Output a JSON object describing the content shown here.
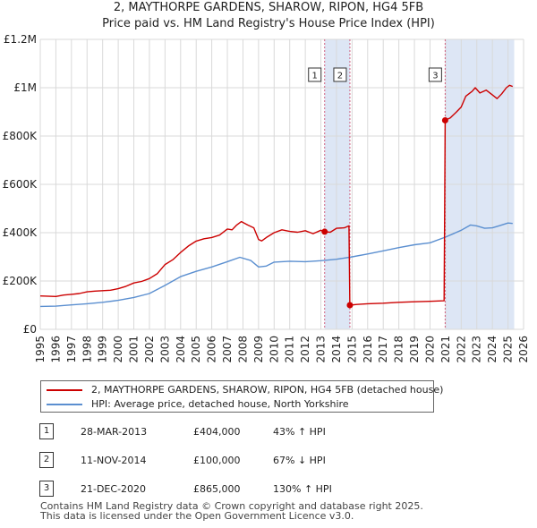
{
  "title_line1": "2, MAYTHORPE GARDENS, SHAROW, RIPON, HG4 5FB",
  "title_line2": "Price paid vs. HM Land Registry's House Price Index (HPI)",
  "colors": {
    "property": "#cc0000",
    "hpi": "#5b8fd0",
    "highlight": "#dde6f5",
    "grid": "#d9d9d9",
    "vline": "#d06080"
  },
  "chart_data": {
    "type": "line",
    "title": "Price paid vs. HM Land Registry's House Price Index (HPI)",
    "xlim": [
      1995,
      2026
    ],
    "ylim": [
      0,
      1200000
    ],
    "x_ticks": [
      1995,
      1996,
      1997,
      1998,
      1999,
      2000,
      2001,
      2002,
      2003,
      2004,
      2005,
      2006,
      2007,
      2008,
      2009,
      2010,
      2011,
      2012,
      2013,
      2014,
      2015,
      2016,
      2017,
      2018,
      2019,
      2020,
      2021,
      2022,
      2023,
      2024,
      2025,
      2026
    ],
    "y_ticks": [
      {
        "value": 0,
        "label": "£0"
      },
      {
        "value": 200000,
        "label": "£200K"
      },
      {
        "value": 400000,
        "label": "£400K"
      },
      {
        "value": 600000,
        "label": "£600K"
      },
      {
        "value": 800000,
        "label": "£800K"
      },
      {
        "value": 1000000,
        "label": "£1M"
      },
      {
        "value": 1200000,
        "label": "£1.2M"
      }
    ],
    "highlight_ranges": [
      [
        2013.24,
        2014.86
      ],
      [
        2020.97,
        2025.4
      ]
    ],
    "series": [
      {
        "name": "2, MAYTHORPE GARDENS, SHAROW, RIPON, HG4 5FB (detached house)",
        "color": "#cc0000",
        "points": [
          [
            1995,
            138000
          ],
          [
            1996,
            136000
          ],
          [
            1996.5,
            142000
          ],
          [
            1997,
            145000
          ],
          [
            1997.5,
            148000
          ],
          [
            1998,
            155000
          ],
          [
            1998.5,
            158000
          ],
          [
            1999,
            160000
          ],
          [
            1999.5,
            162000
          ],
          [
            2000,
            168000
          ],
          [
            2000.5,
            178000
          ],
          [
            2001,
            192000
          ],
          [
            2001.5,
            198000
          ],
          [
            2002,
            210000
          ],
          [
            2002.5,
            230000
          ],
          [
            2003,
            268000
          ],
          [
            2003.5,
            288000
          ],
          [
            2004,
            318000
          ],
          [
            2004.5,
            345000
          ],
          [
            2005,
            365000
          ],
          [
            2005.5,
            375000
          ],
          [
            2006,
            380000
          ],
          [
            2006.5,
            390000
          ],
          [
            2007,
            415000
          ],
          [
            2007.3,
            412000
          ],
          [
            2007.6,
            432000
          ],
          [
            2007.9,
            446000
          ],
          [
            2008.3,
            432000
          ],
          [
            2008.7,
            420000
          ],
          [
            2009,
            372000
          ],
          [
            2009.2,
            366000
          ],
          [
            2009.5,
            380000
          ],
          [
            2010,
            400000
          ],
          [
            2010.5,
            412000
          ],
          [
            2011,
            405000
          ],
          [
            2011.5,
            402000
          ],
          [
            2012,
            408000
          ],
          [
            2012.5,
            396000
          ],
          [
            2013,
            410000
          ],
          [
            2013.24,
            404000
          ],
          [
            2013.6,
            402000
          ],
          [
            2014,
            418000
          ],
          [
            2014.5,
            420000
          ],
          [
            2014.8,
            428000
          ],
          [
            2014.86,
            100000
          ],
          [
            2015.3,
            103000
          ],
          [
            2016,
            106000
          ],
          [
            2017,
            108000
          ],
          [
            2018,
            112000
          ],
          [
            2019,
            114000
          ],
          [
            2020,
            116000
          ],
          [
            2020.9,
            118000
          ],
          [
            2020.97,
            865000
          ],
          [
            2021.3,
            875000
          ],
          [
            2021.7,
            900000
          ],
          [
            2022,
            920000
          ],
          [
            2022.3,
            965000
          ],
          [
            2022.7,
            985000
          ],
          [
            2022.9,
            1000000
          ],
          [
            2023.2,
            978000
          ],
          [
            2023.6,
            990000
          ],
          [
            2024,
            970000
          ],
          [
            2024.3,
            955000
          ],
          [
            2024.6,
            975000
          ],
          [
            2024.9,
            1000000
          ],
          [
            2025.1,
            1010000
          ],
          [
            2025.3,
            1005000
          ]
        ]
      },
      {
        "name": "HPI: Average price, detached house, North Yorkshire",
        "color": "#5b8fd0",
        "points": [
          [
            1995,
            95000
          ],
          [
            1996,
            96000
          ],
          [
            1997,
            101000
          ],
          [
            1998,
            106000
          ],
          [
            1999,
            112000
          ],
          [
            2000,
            120000
          ],
          [
            2001,
            132000
          ],
          [
            2002,
            148000
          ],
          [
            2003,
            182000
          ],
          [
            2004,
            218000
          ],
          [
            2005,
            240000
          ],
          [
            2006,
            258000
          ],
          [
            2007,
            280000
          ],
          [
            2007.8,
            298000
          ],
          [
            2008.5,
            285000
          ],
          [
            2009,
            258000
          ],
          [
            2009.5,
            262000
          ],
          [
            2010,
            278000
          ],
          [
            2011,
            282000
          ],
          [
            2012,
            280000
          ],
          [
            2013,
            284000
          ],
          [
            2014,
            290000
          ],
          [
            2015,
            300000
          ],
          [
            2016,
            312000
          ],
          [
            2017,
            325000
          ],
          [
            2018,
            338000
          ],
          [
            2019,
            350000
          ],
          [
            2020,
            358000
          ],
          [
            2021,
            382000
          ],
          [
            2022,
            410000
          ],
          [
            2022.6,
            432000
          ],
          [
            2023,
            428000
          ],
          [
            2023.5,
            418000
          ],
          [
            2024,
            420000
          ],
          [
            2024.5,
            430000
          ],
          [
            2025,
            440000
          ],
          [
            2025.3,
            438000
          ]
        ]
      }
    ],
    "sales": [
      {
        "n": "1",
        "x": 2013.24,
        "y": 404000
      },
      {
        "n": "2",
        "x": 2014.86,
        "y": 100000
      },
      {
        "n": "3",
        "x": 2020.97,
        "y": 865000
      }
    ]
  },
  "legend": {
    "property_label": "2, MAYTHORPE GARDENS, SHAROW, RIPON, HG4 5FB (detached house)",
    "hpi_label": "HPI: Average price, detached house, North Yorkshire"
  },
  "sales_table": [
    {
      "n": "1",
      "date": "28-MAR-2013",
      "price": "£404,000",
      "hpi": "43% ↑ HPI"
    },
    {
      "n": "2",
      "date": "11-NOV-2014",
      "price": "£100,000",
      "hpi": "67% ↓ HPI"
    },
    {
      "n": "3",
      "date": "21-DEC-2020",
      "price": "£865,000",
      "hpi": "130% ↑ HPI"
    }
  ],
  "footer_line1": "Contains HM Land Registry data © Crown copyright and database right 2025.",
  "footer_line2": "This data is licensed under the Open Government Licence v3.0."
}
